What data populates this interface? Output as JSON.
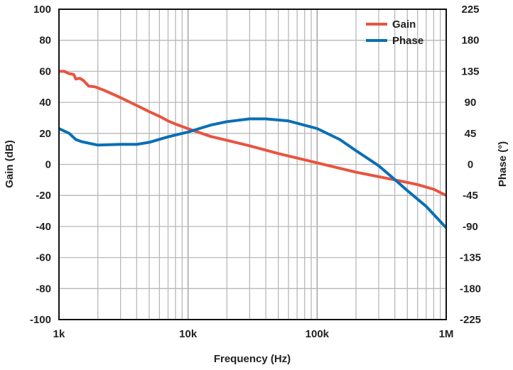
{
  "chart_data": {
    "type": "line",
    "xlabel": "Frequency (Hz)",
    "ylabel": "Gain (dB)",
    "y2label": "Phase (°)",
    "xscale": "log",
    "xlim": [
      1000,
      1000000
    ],
    "ylim": [
      -100,
      100
    ],
    "y2lim": [
      -225,
      225
    ],
    "xticks": [
      {
        "v": 1000,
        "label": "1k"
      },
      {
        "v": 10000,
        "label": "10k"
      },
      {
        "v": 100000,
        "label": "100k"
      },
      {
        "v": 1000000,
        "label": "1M"
      }
    ],
    "yticks": [
      "100",
      "80",
      "60",
      "40",
      "20",
      "0",
      "-20",
      "-40",
      "-60",
      "-80",
      "-100"
    ],
    "y2ticks": [
      "225",
      "180",
      "135",
      "90",
      "45",
      "0",
      "-45",
      "-90",
      "-135",
      "-180",
      "-225"
    ],
    "grid": true,
    "legend": "top-right",
    "series": [
      {
        "name": "Gain",
        "axis": "left",
        "color": "#e8543f",
        "x": [
          1000,
          1100,
          1200,
          1300,
          1350,
          1450,
          1550,
          1700,
          1900,
          2200,
          2500,
          3000,
          4000,
          5000,
          6000,
          7000,
          8000,
          10000,
          15000,
          20000,
          30000,
          50000,
          100000,
          200000,
          400000,
          600000,
          800000,
          1000000
        ],
        "y": [
          60,
          60,
          58.5,
          58,
          55,
          55.5,
          54,
          50.5,
          50,
          48,
          46,
          43,
          38,
          34,
          31,
          28,
          26,
          23,
          18,
          15.5,
          12,
          7,
          1,
          -5,
          -10,
          -13,
          -16,
          -20
        ]
      },
      {
        "name": "Phase",
        "axis": "right",
        "color": "#0a6fb5",
        "x": [
          1000,
          1200,
          1350,
          1500,
          2000,
          3000,
          4000,
          5000,
          7000,
          10000,
          15000,
          20000,
          30000,
          40000,
          60000,
          100000,
          150000,
          200000,
          300000,
          400000,
          500000,
          700000,
          1000000
        ],
        "y": [
          52,
          45,
          36,
          33,
          28,
          29,
          29,
          32,
          40,
          47,
          57,
          62,
          66,
          66,
          63,
          52,
          36,
          20,
          -2,
          -22,
          -38,
          -61,
          -92
        ]
      }
    ]
  }
}
